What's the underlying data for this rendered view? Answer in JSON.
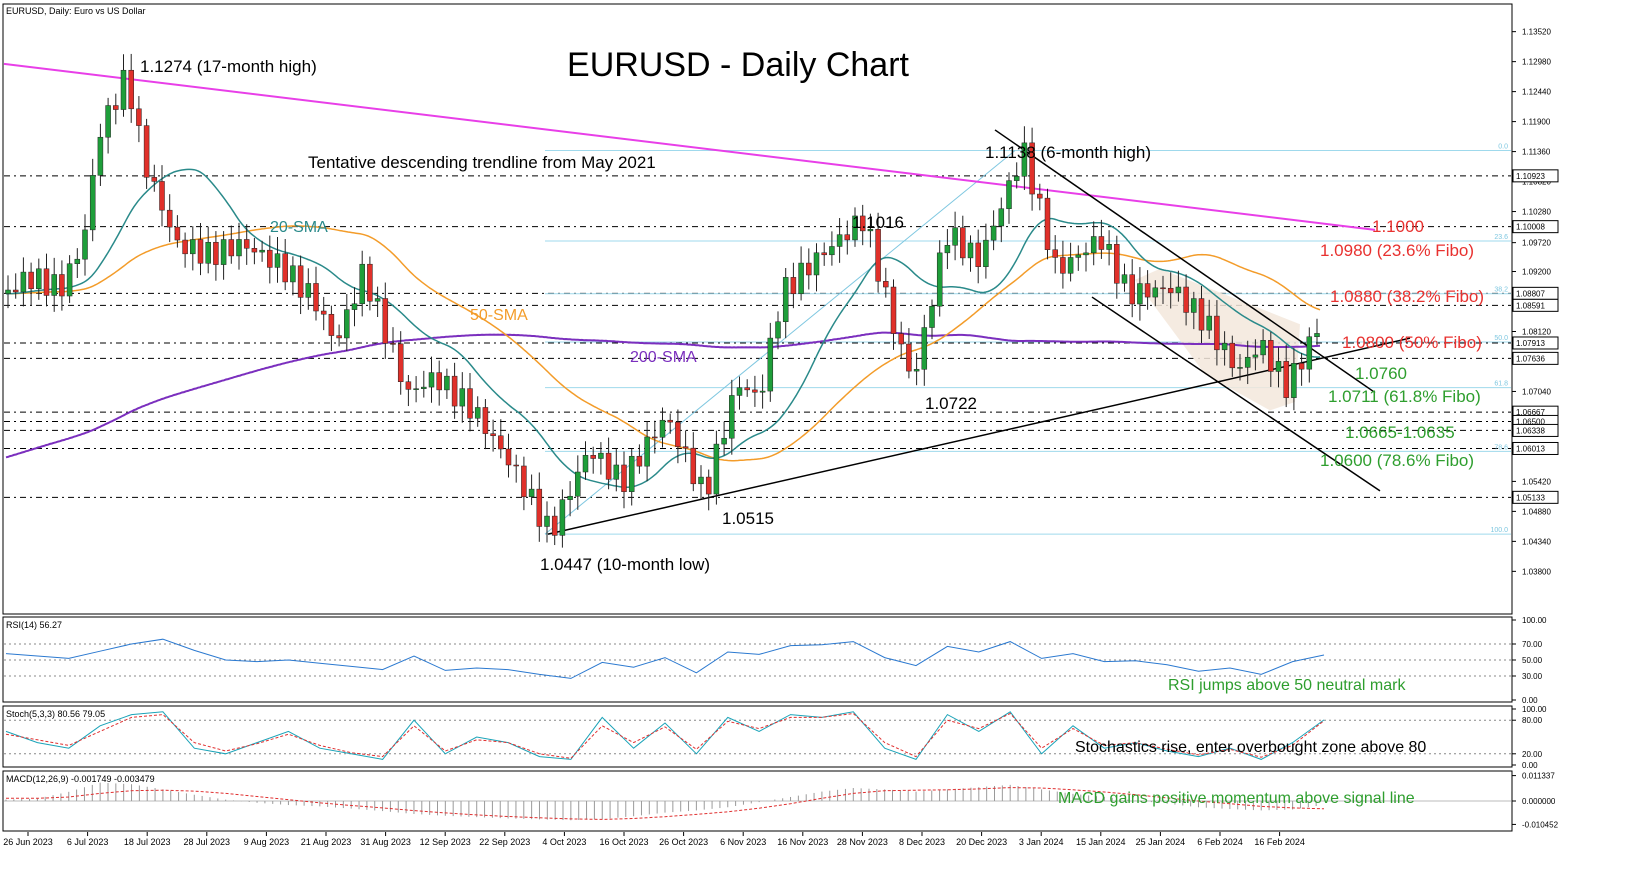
{
  "header": {
    "symbol_info": "EURUSD, Daily:  Euro vs US Dollar",
    "title": "EURUSD - Daily Chart"
  },
  "chart_data": [
    {
      "type": "candlestick",
      "title": "EURUSD - Daily Chart",
      "symbol": "EURUSD, Daily:  Euro vs US Dollar",
      "ylim": [
        1.0305,
        1.14
      ],
      "y_ticks": [
        "1.13520",
        "1.12980",
        "1.12440",
        "1.11900",
        "1.11360",
        "1.10820",
        "1.10280",
        "1.09720",
        "1.09200",
        "1.08660",
        "1.08120",
        "1.07580",
        "1.07040",
        "1.06500",
        "1.05960",
        "1.05420",
        "1.04880",
        "1.04340",
        "1.03800"
      ],
      "y_tick_values": [
        1.1352,
        1.1298,
        1.1244,
        1.119,
        1.1136,
        1.1082,
        1.1028,
        1.0972,
        1.092,
        1.0866,
        1.0812,
        1.0758,
        1.0704,
        1.065,
        1.0596,
        1.0542,
        1.0488,
        1.0434,
        1.038
      ],
      "x_ticks": [
        "26 Jun 2023",
        "6 Jul 2023",
        "18 Jul 2023",
        "28 Jul 2023",
        "9 Aug 2023",
        "21 Aug 2023",
        "31 Aug 2023",
        "12 Sep 2023",
        "22 Sep 2023",
        "4 Oct 2023",
        "16 Oct 2023",
        "26 Oct 2023",
        "6 Nov 2023",
        "16 Nov 2023",
        "28 Nov 2023",
        "8 Dec 2023",
        "20 Dec 2023",
        "3 Jan 2024",
        "15 Jan 2024",
        "25 Jan 2024",
        "6 Feb 2024",
        "16 Feb 2024"
      ],
      "price_boxes": [
        {
          "label": "1.10923",
          "value": 1.10923
        },
        {
          "label": "1.10008",
          "value": 1.10008
        },
        {
          "label": "1.08807",
          "value": 1.08807
        },
        {
          "label": "1.08591",
          "value": 1.08591
        },
        {
          "label": "1.07913",
          "value": 1.07913
        },
        {
          "label": "1.07636",
          "value": 1.07636
        },
        {
          "label": "1.06667",
          "value": 1.06667
        },
        {
          "label": "1.06500",
          "value": 1.065
        },
        {
          "label": "1.06338",
          "value": 1.06338
        },
        {
          "label": "1.06013",
          "value": 1.06013
        },
        {
          "label": "1.05133",
          "value": 1.05133
        }
      ],
      "price_path": [
        {
          "date": "2023-06-26",
          "close": 1.088
        },
        {
          "date": "2023-06-30",
          "close": 1.091
        },
        {
          "date": "2023-07-06",
          "close": 1.089
        },
        {
          "date": "2023-07-10",
          "close": 1.097
        },
        {
          "date": "2023-07-13",
          "close": 1.117
        },
        {
          "date": "2023-07-18",
          "close": 1.1274
        },
        {
          "date": "2023-07-21",
          "close": 1.112
        },
        {
          "date": "2023-07-27",
          "close": 1.097
        },
        {
          "date": "2023-08-02",
          "close": 1.095
        },
        {
          "date": "2023-08-08",
          "close": 1.097
        },
        {
          "date": "2023-08-15",
          "close": 1.093
        },
        {
          "date": "2023-08-21",
          "close": 1.087
        },
        {
          "date": "2023-08-25",
          "close": 1.079
        },
        {
          "date": "2023-08-30",
          "close": 1.092
        },
        {
          "date": "2023-09-07",
          "close": 1.07
        },
        {
          "date": "2023-09-12",
          "close": 1.073
        },
        {
          "date": "2023-09-19",
          "close": 1.067
        },
        {
          "date": "2023-09-26",
          "close": 1.057
        },
        {
          "date": "2023-10-03",
          "close": 1.0447
        },
        {
          "date": "2023-10-10",
          "close": 1.06
        },
        {
          "date": "2023-10-16",
          "close": 1.054
        },
        {
          "date": "2023-10-24",
          "close": 1.066
        },
        {
          "date": "2023-10-31",
          "close": 1.0515
        },
        {
          "date": "2023-11-06",
          "close": 1.072
        },
        {
          "date": "2023-11-10",
          "close": 1.069
        },
        {
          "date": "2023-11-14",
          "close": 1.088
        },
        {
          "date": "2023-11-20",
          "close": 1.094
        },
        {
          "date": "2023-11-29",
          "close": 1.1016
        },
        {
          "date": "2023-12-05",
          "close": 1.08
        },
        {
          "date": "2023-12-08",
          "close": 1.0722
        },
        {
          "date": "2023-12-14",
          "close": 1.099
        },
        {
          "date": "2023-12-20",
          "close": 1.094
        },
        {
          "date": "2023-12-28",
          "close": 1.1138
        },
        {
          "date": "2024-01-03",
          "close": 1.092
        },
        {
          "date": "2024-01-11",
          "close": 1.098
        },
        {
          "date": "2024-01-16",
          "close": 1.088
        },
        {
          "date": "2024-01-24",
          "close": 1.089
        },
        {
          "date": "2024-01-30",
          "close": 1.083
        },
        {
          "date": "2024-02-05",
          "close": 1.074
        },
        {
          "date": "2024-02-09",
          "close": 1.079
        },
        {
          "date": "2024-02-14",
          "close": 1.0711
        },
        {
          "date": "2024-02-19",
          "close": 1.081
        },
        {
          "date": "2024-02-22",
          "close": 1.0859
        }
      ],
      "lines": [
        {
          "name": "20-SMA",
          "color": "#2a8a8a"
        },
        {
          "name": "50-SMA",
          "color": "#f39c2a"
        },
        {
          "name": "200-SMA",
          "color": "#7b2fbe"
        },
        {
          "name": "Tentative descending trendline from May 2021",
          "color": "#e83fe8"
        }
      ],
      "fib_levels": [
        {
          "label": "0.0",
          "value": 1.1138
        },
        {
          "label": "23.6",
          "value": 1.0975
        },
        {
          "label": "38.2",
          "value": 1.088
        },
        {
          "label": "50.0",
          "value": 1.0793
        },
        {
          "label": "61.8",
          "value": 1.0711
        },
        {
          "label": "78.6",
          "value": 1.0596
        },
        {
          "label": "100.0",
          "value": 1.0447
        }
      ],
      "annotations": [
        {
          "key": "high",
          "text": "1.1274 (17-month high)",
          "color": "#000000"
        },
        {
          "key": "trend",
          "text": "Tentative descending trendline from May 2021",
          "color": "#000000"
        },
        {
          "key": "six_month_high",
          "text": "1.1138 (6-month high)",
          "color": "#000000"
        },
        {
          "key": "sma20",
          "text": "20-SMA",
          "color": "#2a8a8a"
        },
        {
          "key": "sma50",
          "text": "50-SMA",
          "color": "#f39c2a"
        },
        {
          "key": "sma200",
          "text": "200-SMA",
          "color": "#7b2fbe"
        },
        {
          "key": "p1016",
          "text": "1.1016",
          "color": "#000000"
        },
        {
          "key": "p0722",
          "text": "1.0722",
          "color": "#000000"
        },
        {
          "key": "p0515",
          "text": "1.0515",
          "color": "#000000"
        },
        {
          "key": "low",
          "text": "1.0447 (10-month low)",
          "color": "#000000"
        },
        {
          "key": "r1000",
          "text": "1.1000",
          "color": "#e8312f"
        },
        {
          "key": "r0980",
          "text": "1.0980 (23.6% Fibo)",
          "color": "#e8312f"
        },
        {
          "key": "r0880",
          "text": "1.0880 (38.2% Fibo)",
          "color": "#e8312f"
        },
        {
          "key": "r0800",
          "text": "1.0800 (50% Fibo)",
          "color": "#e8312f"
        },
        {
          "key": "s0760",
          "text": "1.0760",
          "color": "#2e9e2e"
        },
        {
          "key": "s0711",
          "text": "1.0711 (61.8% Fibo)",
          "color": "#2e9e2e"
        },
        {
          "key": "s0665",
          "text": "1.0665-1.0635",
          "color": "#2e9e2e"
        },
        {
          "key": "s0600",
          "text": "1.0600 (78.6% Fibo)",
          "color": "#2e9e2e"
        }
      ]
    },
    {
      "type": "line",
      "name": "RSI(14)",
      "header": "RSI(14) 56.27",
      "ylim": [
        0,
        100
      ],
      "y_ticks": [
        "100.00",
        "70.00",
        "50.00",
        "30.00",
        "0.00"
      ],
      "y_tick_values": [
        100,
        70,
        50,
        30,
        0
      ],
      "values": [
        58,
        55,
        52,
        61,
        70,
        76,
        62,
        50,
        48,
        50,
        46,
        42,
        38,
        55,
        37,
        40,
        38,
        32,
        27,
        47,
        41,
        53,
        34,
        60,
        57,
        68,
        69,
        73,
        53,
        43,
        67,
        60,
        73,
        52,
        58,
        48,
        49,
        44,
        36,
        40,
        32,
        48,
        56.27
      ],
      "annotation": "RSI jumps above 50 neutral mark"
    },
    {
      "type": "line",
      "name": "Stoch(5,3,3)",
      "header": "Stoch(5,3,3) 80.56 79.05",
      "ylim": [
        0,
        100
      ],
      "y_ticks": [
        "100.00",
        "80.00",
        "20.00",
        "0.00"
      ],
      "y_tick_values": [
        100,
        80,
        20,
        0
      ],
      "k": [
        60,
        40,
        30,
        70,
        90,
        95,
        30,
        20,
        40,
        60,
        30,
        20,
        10,
        80,
        20,
        50,
        40,
        15,
        10,
        85,
        30,
        75,
        20,
        85,
        60,
        90,
        85,
        95,
        30,
        10,
        90,
        60,
        95,
        20,
        70,
        30,
        40,
        25,
        15,
        30,
        10,
        40,
        80.56
      ],
      "d": [
        55,
        45,
        35,
        60,
        85,
        90,
        40,
        25,
        38,
        55,
        35,
        22,
        15,
        70,
        25,
        45,
        40,
        20,
        12,
        70,
        40,
        68,
        28,
        78,
        65,
        85,
        85,
        92,
        40,
        15,
        80,
        65,
        92,
        30,
        65,
        35,
        40,
        28,
        18,
        28,
        14,
        35,
        79.05
      ],
      "annotation": "Stochastics rise, enter overbought zone above 80"
    },
    {
      "type": "bar",
      "name": "MACD(12,26,9)",
      "header": "MACD(12,26,9) -0.001749 -0.003479",
      "ylim": [
        -0.0125,
        0.0125
      ],
      "y_ticks": [
        "0.011337",
        "0.000000",
        "-0.010452"
      ],
      "y_tick_values": [
        0.011337,
        0,
        -0.010452
      ],
      "histogram": [
        0.0006,
        0.0011,
        0.0041,
        0.0082,
        0.0075,
        0.0052,
        0.0028,
        0.0006,
        -0.0008,
        -0.0018,
        -0.0024,
        -0.0034,
        -0.0045,
        -0.0058,
        -0.0066,
        -0.0072,
        -0.0078,
        -0.0082,
        -0.0086,
        -0.0081,
        -0.0068,
        -0.0052,
        -0.0042,
        -0.0028,
        -0.0005,
        0.0018,
        0.0042,
        0.0058,
        0.0052,
        0.0042,
        0.0052,
        0.0062,
        0.0072,
        0.0052,
        0.0032,
        0.0018,
        0.0002,
        -0.0012,
        -0.0028,
        -0.0036,
        -0.0042,
        -0.0038,
        -0.0017
      ],
      "signal": [
        0.0012,
        0.0012,
        0.0018,
        0.0034,
        0.0046,
        0.0048,
        0.0044,
        0.0034,
        0.002,
        0.0006,
        -0.0008,
        -0.002,
        -0.0031,
        -0.0043,
        -0.0053,
        -0.0062,
        -0.0069,
        -0.0075,
        -0.008,
        -0.0082,
        -0.0078,
        -0.007,
        -0.006,
        -0.0048,
        -0.0032,
        -0.0012,
        0.0012,
        0.0034,
        0.0046,
        0.0048,
        0.005,
        0.0054,
        0.006,
        0.0058,
        0.005,
        0.004,
        0.0028,
        0.0014,
        0.0,
        -0.0012,
        -0.0024,
        -0.0031,
        -0.0035
      ],
      "annotation": "MACD gains positive momentum above signal line"
    }
  ]
}
